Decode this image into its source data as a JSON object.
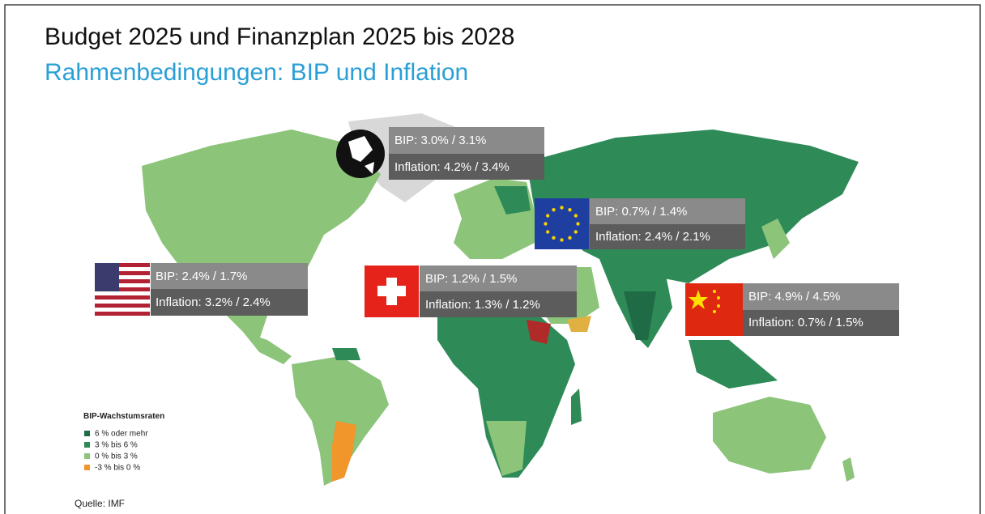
{
  "header": {
    "title": "Budget 2025 und Finanzplan 2025 bis 2028",
    "subtitle": "Rahmenbedingungen: BIP und Inflation"
  },
  "callouts": [
    {
      "region": "Welt",
      "bip": "BIP: 3.0% /  3.1%",
      "inflation": "Inflation: 4.2% / 3.4%"
    },
    {
      "region": "EU",
      "bip": "BIP: 0.7% / 1.4%",
      "inflation": "Inflation: 2.4% / 2.1%"
    },
    {
      "region": "USA",
      "bip": "BIP: 2.4% /  1.7%",
      "inflation": "Inflation: 3.2% / 2.4%"
    },
    {
      "region": "Schweiz",
      "bip": "BIP: 1.2% / 1.5%",
      "inflation": "Inflation: 1.3% / 1.2%"
    },
    {
      "region": "China",
      "bip": "BIP: 4.9% / 4.5%",
      "inflation": "Inflation: 0.7% / 1.5%"
    }
  ],
  "legend": {
    "title": "BIP-Wachstumsraten",
    "items": [
      "6 % oder mehr",
      "3 % bis 6 %",
      "0 % bis 3 %",
      "-3 % bis 0 %"
    ]
  },
  "source": "Quelle: IMF"
}
